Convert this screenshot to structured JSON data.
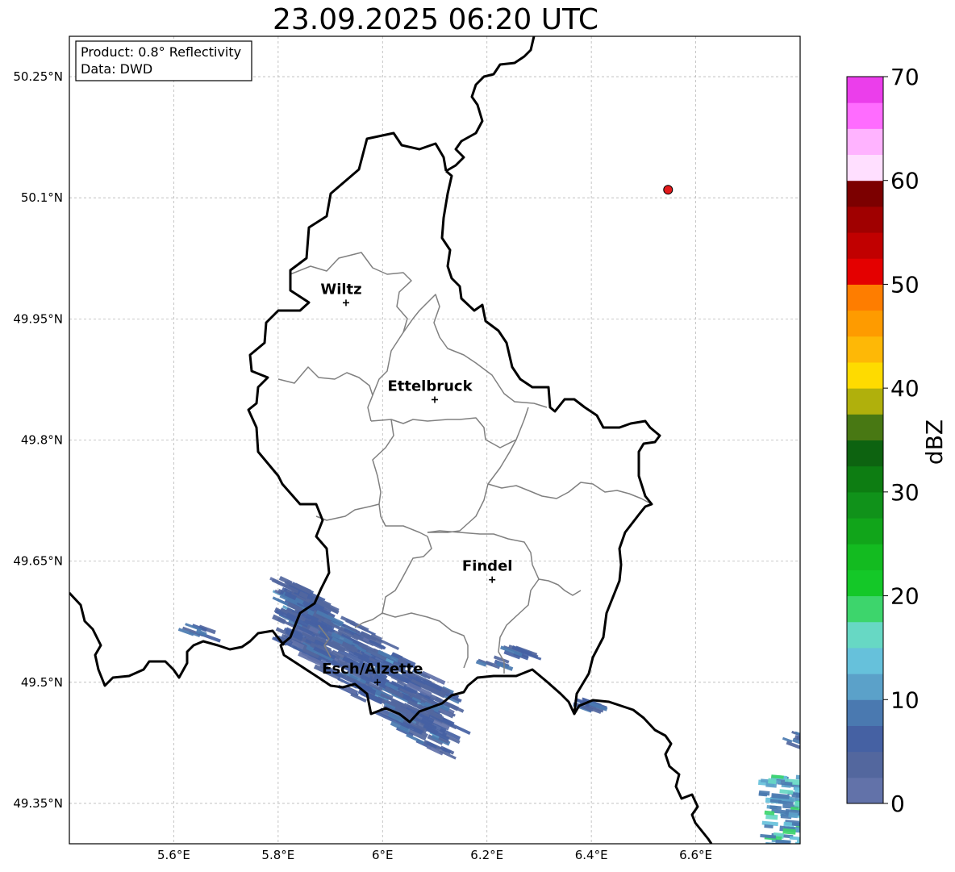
{
  "title": "23.09.2025 06:20 UTC",
  "info": {
    "product": "Product: 0.8° Reflectivity",
    "source": "Data: DWD"
  },
  "map": {
    "lon_range": [
      5.4,
      6.8
    ],
    "lat_range": [
      49.3,
      50.3
    ],
    "lon_ticks": [
      {
        "value": 5.6,
        "label": "5.6°E"
      },
      {
        "value": 5.8,
        "label": "5.8°E"
      },
      {
        "value": 6.0,
        "label": "6°E"
      },
      {
        "value": 6.2,
        "label": "6.2°E"
      },
      {
        "value": 6.4,
        "label": "6.4°E"
      },
      {
        "value": 6.6,
        "label": "6.6°E"
      }
    ],
    "lat_ticks": [
      {
        "value": 50.25,
        "label": "50.25°N"
      },
      {
        "value": 50.1,
        "label": "50.1°N"
      },
      {
        "value": 49.95,
        "label": "49.95°N"
      },
      {
        "value": 49.8,
        "label": "49.8°N"
      },
      {
        "value": 49.65,
        "label": "49.65°N"
      },
      {
        "value": 49.5,
        "label": "49.5°N"
      },
      {
        "value": 49.35,
        "label": "49.35°N"
      }
    ],
    "cities": [
      {
        "name": "Wiltz",
        "lon": 5.93,
        "lat": 49.97
      },
      {
        "name": "Ettelbruck",
        "lon": 6.1,
        "lat": 49.85
      },
      {
        "name": "Findel",
        "lon": 6.21,
        "lat": 49.627
      },
      {
        "name": "Esch/Alzette",
        "lon": 5.99,
        "lat": 49.5
      }
    ],
    "radar_site": {
      "lon": 6.547,
      "lat": 50.11,
      "color": "#e31a1c"
    },
    "grid": true
  },
  "colorbar": {
    "label": "dBZ",
    "min": 0,
    "max": 70,
    "step": 5,
    "ticks": [
      "0",
      "10",
      "20",
      "30",
      "40",
      "50",
      "60",
      "70"
    ],
    "colors": [
      "#6272a9",
      "#53679e",
      "#4561a3",
      "#4a79b0",
      "#5ba1c9",
      "#66c1db",
      "#67d8c4",
      "#3dd56c",
      "#14c828",
      "#13bb20",
      "#11a51a",
      "#10921a",
      "#0d7d12",
      "#0d6310",
      "#487813",
      "#b0b00c",
      "#fedb00",
      "#feb806",
      "#fe9b00",
      "#fe7d00",
      "#e40000",
      "#c10000",
      "#a00000",
      "#7c0000",
      "#ffdfff",
      "#ffb3ff",
      "#ff6cff",
      "#eb3eeb"
    ]
  },
  "colors": {
    "national_border": "#000000",
    "canton_border": "#808080",
    "grid": "#b8b8b8"
  }
}
